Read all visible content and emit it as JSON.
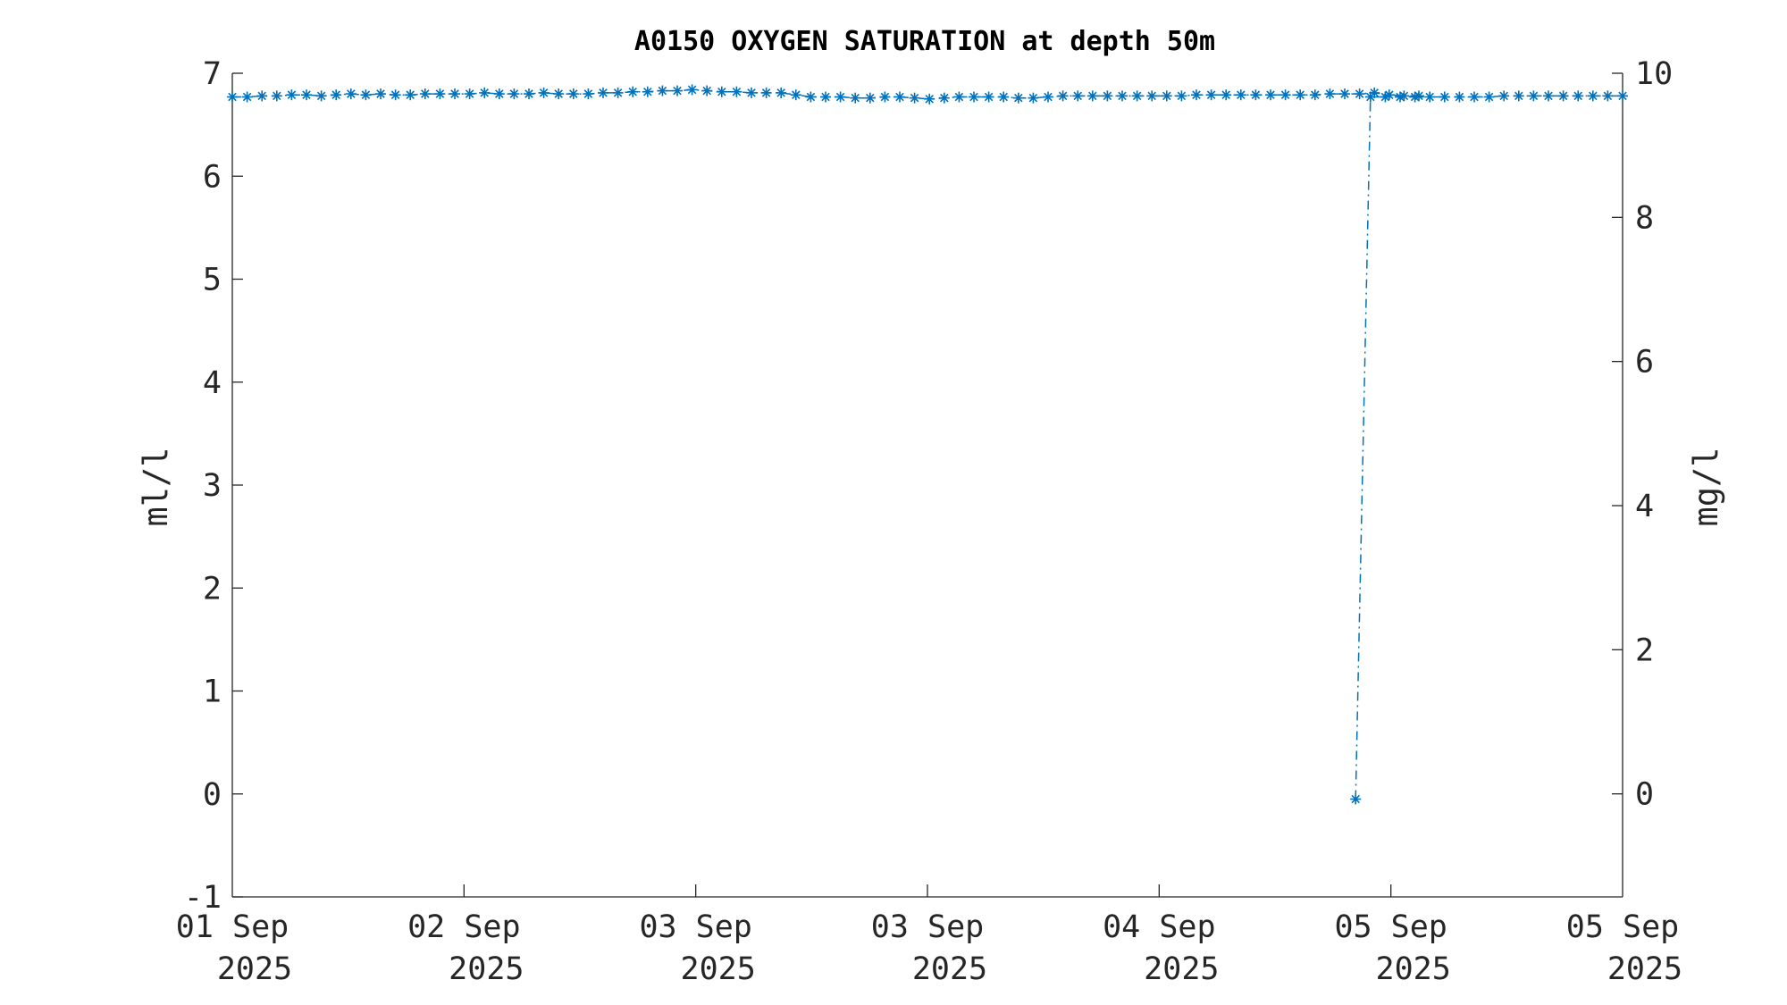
{
  "chart_data": {
    "type": "line",
    "title": "A0150 OXYGEN SATURATION at depth 50m",
    "ylabel_left": "ml/l",
    "ylabel_right": "mg/l",
    "ylim_left": [
      -1,
      7
    ],
    "ylim_right": [
      -1.43,
      10
    ],
    "left_ticks": [
      "7",
      "6",
      "5",
      "4",
      "3",
      "2",
      "1",
      "0",
      "-1"
    ],
    "right_ticks": [
      "10",
      "8",
      "6",
      "4",
      "2",
      "0"
    ],
    "x_tick_labels": [
      {
        "day": "01 Sep",
        "year": "2025"
      },
      {
        "day": "02 Sep",
        "year": "2025"
      },
      {
        "day": "03 Sep",
        "year": "2025"
      },
      {
        "day": "03 Sep",
        "year": "2025"
      },
      {
        "day": "04 Sep",
        "year": "2025"
      },
      {
        "day": "05 Sep",
        "year": "2025"
      },
      {
        "day": "05 Sep",
        "year": "2025"
      }
    ],
    "series": [
      {
        "color": "#0072bd",
        "line_style": "dash-dot",
        "marker": "asterisk",
        "segments": [
          [
            6.77,
            6.77,
            6.78,
            6.78,
            6.79,
            6.79,
            6.78,
            6.79,
            6.8,
            6.79,
            6.8,
            6.79,
            6.79,
            6.8,
            6.8,
            6.8,
            6.8,
            6.81,
            6.8,
            6.8,
            6.8,
            6.81,
            6.8,
            6.8,
            6.8,
            6.81,
            6.81,
            6.82,
            6.82,
            6.83,
            6.83,
            6.84,
            6.83,
            6.82,
            6.82,
            6.81,
            6.81,
            6.81,
            6.79,
            6.77,
            6.77,
            6.77,
            6.76,
            6.76,
            6.77,
            6.77,
            6.76,
            6.75,
            6.76,
            6.77,
            6.77,
            6.77,
            6.77,
            6.76,
            6.76,
            6.77,
            6.78,
            6.78,
            6.78,
            6.78,
            6.78,
            6.78,
            6.78,
            6.78,
            6.78,
            6.79,
            6.79,
            6.79,
            6.79,
            6.79,
            6.79,
            6.79,
            6.79,
            6.79,
            6.8,
            6.8,
            6.8,
            6.81,
            6.79,
            6.78,
            6.78
          ],
          [
            -0.05,
            6.77,
            6.77,
            6.77,
            6.77,
            6.77,
            6.77,
            6.77,
            6.77,
            6.77,
            6.78,
            6.78,
            6.78,
            6.78,
            6.78,
            6.78,
            6.78,
            6.78,
            6.78
          ]
        ]
      }
    ]
  }
}
